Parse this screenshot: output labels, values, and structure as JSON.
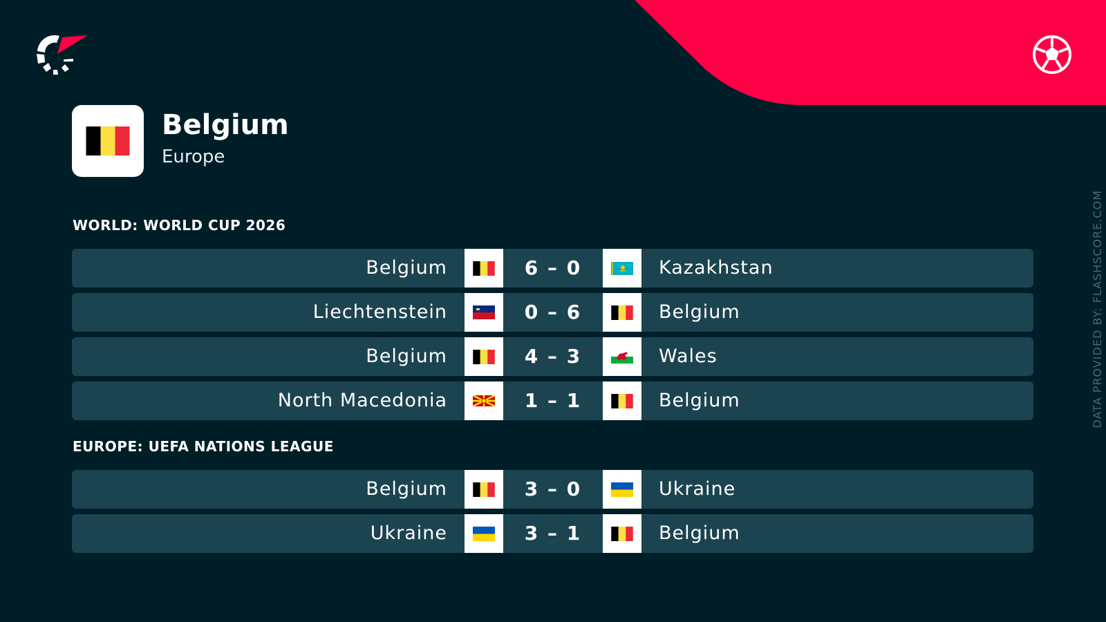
{
  "brand": {
    "accent": "#ff0046",
    "background": "#001e28",
    "row": "#1c4350",
    "logo": "flashscore-logo",
    "sport_icon": "soccer-ball-icon"
  },
  "team": {
    "name": "Belgium",
    "region": "Europe",
    "flag": "belgium"
  },
  "sections": [
    {
      "title": "WORLD: WORLD CUP 2026",
      "matches": [
        {
          "home": "Belgium",
          "home_flag": "belgium",
          "score_home": "6",
          "score_away": "0",
          "away": "Kazakhstan",
          "away_flag": "kazakhstan"
        },
        {
          "home": "Liechtenstein",
          "home_flag": "liechtenstein",
          "score_home": "0",
          "score_away": "6",
          "away": "Belgium",
          "away_flag": "belgium"
        },
        {
          "home": "Belgium",
          "home_flag": "belgium",
          "score_home": "4",
          "score_away": "3",
          "away": "Wales",
          "away_flag": "wales"
        },
        {
          "home": "North Macedonia",
          "home_flag": "north-macedonia",
          "score_home": "1",
          "score_away": "1",
          "away": "Belgium",
          "away_flag": "belgium"
        }
      ]
    },
    {
      "title": "EUROPE: UEFA NATIONS LEAGUE",
      "matches": [
        {
          "home": "Belgium",
          "home_flag": "belgium",
          "score_home": "3",
          "score_away": "0",
          "away": "Ukraine",
          "away_flag": "ukraine"
        },
        {
          "home": "Ukraine",
          "home_flag": "ukraine",
          "score_home": "3",
          "score_away": "1",
          "away": "Belgium",
          "away_flag": "belgium"
        }
      ]
    }
  ],
  "credit": "DATA PROVIDED BY: FLASHSCORE.COM"
}
